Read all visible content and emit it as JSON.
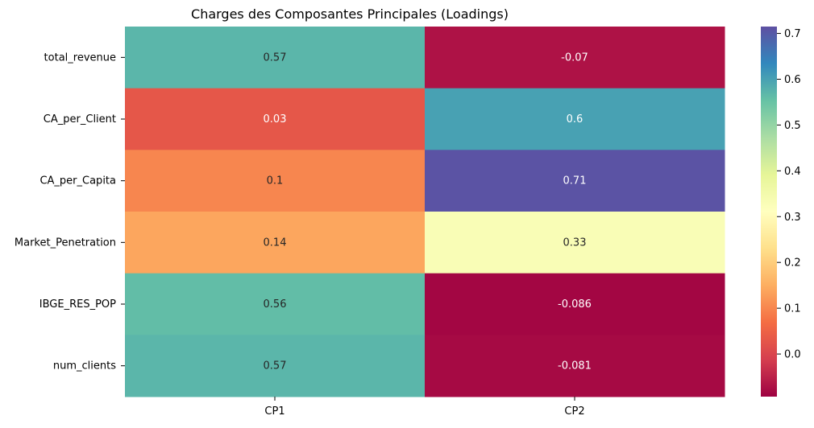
{
  "chart_data": {
    "type": "heatmap",
    "title": "Charges des Composantes Principales (Loadings)",
    "xlabel": "",
    "ylabel": "",
    "columns": [
      "CP1",
      "CP2"
    ],
    "rows": [
      "total_revenue",
      "CA_per_Client",
      "CA_per_Capita",
      "Market_Penetration",
      "IBGE_RES_POP",
      "num_clients"
    ],
    "values": [
      [
        0.57,
        -0.07
      ],
      [
        0.03,
        0.6
      ],
      [
        0.1,
        0.71
      ],
      [
        0.14,
        0.33
      ],
      [
        0.56,
        -0.086
      ],
      [
        0.57,
        -0.081
      ]
    ],
    "annotations": [
      [
        "0.57",
        "-0.07"
      ],
      [
        "0.03",
        "0.6"
      ],
      [
        "0.1",
        "0.71"
      ],
      [
        "0.14",
        "0.33"
      ],
      [
        "0.56",
        "-0.086"
      ],
      [
        "0.57",
        "-0.081"
      ]
    ],
    "colormap": "Spectral",
    "colorbar": {
      "range": [
        -0.093,
        0.715
      ],
      "ticks": [
        0.0,
        0.1,
        0.2,
        0.3,
        0.4,
        0.5,
        0.6,
        0.7
      ],
      "tick_labels": [
        "0.0",
        "0.1",
        "0.2",
        "0.3",
        "0.4",
        "0.5",
        "0.6",
        "0.7"
      ]
    },
    "grid": false
  }
}
